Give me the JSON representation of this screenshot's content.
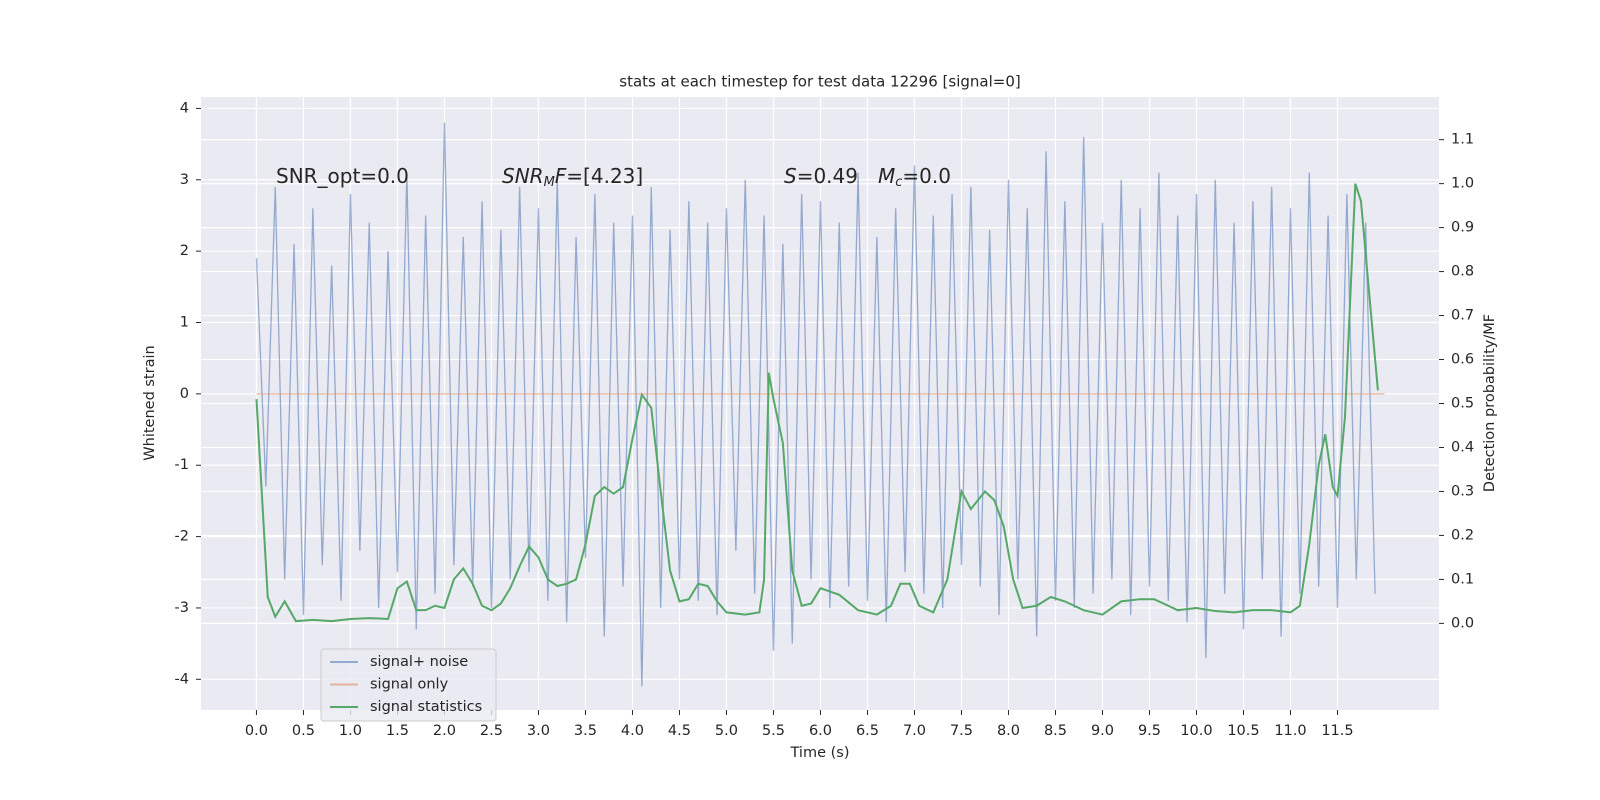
{
  "chart_data": {
    "type": "line",
    "title": "stats at each timestep for test data 12296 [signal=0]",
    "xlabel": "Time (s)",
    "ylabel": "Whitened strain",
    "y2label": "Detection probability/MF",
    "annotations": [
      [
        "SNR_opt=0.0"
      ],
      [
        "SNR",
        "M",
        "F",
        "=[4.23]"
      ],
      [
        "S",
        "=0.49"
      ],
      [
        "M",
        "c",
        "=0.0"
      ]
    ],
    "xlim": [
      -0.59,
      12.58
    ],
    "xticks": [
      {
        "value": 0,
        "label": "0.0"
      },
      0.5,
      {
        "value": 1,
        "label": "1.0"
      },
      1.5,
      {
        "value": 2,
        "label": "2.0"
      },
      2.5,
      {
        "value": 3,
        "label": "3.0"
      },
      3.5,
      {
        "value": 4,
        "label": "4.0"
      },
      4.5,
      {
        "value": 5,
        "label": "5.0"
      },
      5.5,
      {
        "value": 6,
        "label": "6.0"
      },
      6.5,
      {
        "value": 7,
        "label": "7.0"
      },
      7.5,
      {
        "value": 8,
        "label": "8.0"
      },
      8.5,
      {
        "value": 9,
        "label": "9.0"
      },
      9.5,
      {
        "value": 10,
        "label": "10.0"
      },
      10.5,
      {
        "value": 11,
        "label": "11.0"
      },
      11.5
    ],
    "ylim": [
      -4.43,
      4.16
    ],
    "yticks": [
      -4,
      -3,
      -2,
      -1,
      0,
      1,
      2,
      3,
      4
    ],
    "y2lim": [
      -0.197,
      1.197
    ],
    "y2ticks": [
      {
        "value": 0,
        "label": "0.0"
      },
      0.1,
      0.2,
      0.3,
      0.4,
      0.5,
      0.6,
      0.7,
      0.8,
      0.9,
      {
        "value": 1,
        "label": "1.0"
      },
      1.1
    ],
    "grid": true,
    "legend": "lower left",
    "series": [
      {
        "name": "signal+ noise",
        "color": "#4c72b0",
        "x": [
          0,
          0.1,
          0.2,
          0.3,
          0.4,
          0.5,
          0.6,
          0.7,
          0.8,
          0.9,
          1,
          1.1,
          1.2,
          1.3,
          1.4,
          1.5,
          1.6,
          1.7,
          1.8,
          1.9,
          2,
          2.1,
          2.2,
          2.3,
          2.4,
          2.5,
          2.6,
          2.7,
          2.8,
          2.9,
          3,
          3.1,
          3.2,
          3.3,
          3.4,
          3.5,
          3.6,
          3.7,
          3.8,
          3.9,
          4,
          4.1,
          4.2,
          4.3,
          4.4,
          4.5,
          4.6,
          4.7,
          4.8,
          4.9,
          5,
          5.1,
          5.2,
          5.3,
          5.4,
          5.5,
          5.6,
          5.7,
          5.8,
          5.9,
          6,
          6.1,
          6.2,
          6.3,
          6.4,
          6.5,
          6.6,
          6.7,
          6.8,
          6.9,
          7,
          7.1,
          7.2,
          7.3,
          7.4,
          7.5,
          7.6,
          7.7,
          7.8,
          7.9,
          8,
          8.1,
          8.2,
          8.3,
          8.4,
          8.5,
          8.6,
          8.7,
          8.8,
          8.9,
          9,
          9.1,
          9.2,
          9.3,
          9.4,
          9.5,
          9.6,
          9.7,
          9.8,
          9.9,
          10,
          10.1,
          10.2,
          10.3,
          10.4,
          10.5,
          10.6,
          10.7,
          10.8,
          10.9,
          11,
          11.1,
          11.2,
          11.3,
          11.4,
          11.5,
          11.6,
          11.7,
          11.8,
          11.9
        ],
        "values": [
          1.9,
          -1.3,
          2.9,
          -2.6,
          2.1,
          -3.1,
          2.6,
          -2.4,
          1.8,
          -2.9,
          2.8,
          -2.2,
          2.4,
          -3.0,
          2.0,
          -2.5,
          3.1,
          -3.3,
          2.5,
          -2.8,
          3.8,
          -2.4,
          2.2,
          -2.7,
          2.7,
          -3.0,
          2.3,
          -2.6,
          2.9,
          -2.5,
          2.6,
          -2.9,
          3.0,
          -3.2,
          2.2,
          -2.3,
          2.8,
          -3.4,
          2.4,
          -2.7,
          2.5,
          -4.1,
          2.9,
          -3.0,
          2.3,
          -2.6,
          2.7,
          -2.9,
          2.4,
          -3.1,
          2.6,
          -2.2,
          3.0,
          -2.8,
          2.5,
          -3.6,
          2.1,
          -3.5,
          2.8,
          -2.6,
          2.7,
          -3.0,
          2.4,
          -2.7,
          3.1,
          -2.9,
          2.2,
          -3.2,
          2.6,
          -2.5,
          3.2,
          -2.8,
          2.5,
          -3.0,
          2.8,
          -2.4,
          2.9,
          -2.7,
          2.3,
          -3.1,
          3.0,
          -2.6,
          2.6,
          -3.4,
          3.4,
          -2.9,
          2.7,
          -3.0,
          3.6,
          -2.8,
          2.4,
          -2.6,
          3.0,
          -3.1,
          2.6,
          -2.7,
          3.1,
          -2.9,
          2.5,
          -3.2,
          2.8,
          -3.7,
          3.0,
          -2.8,
          2.4,
          -3.3,
          2.7,
          -2.6,
          2.9,
          -3.4,
          2.6,
          -2.8,
          3.1,
          -2.7,
          2.5,
          -3.0,
          2.8,
          -2.6,
          2.4,
          -2.8
        ]
      },
      {
        "name": "signal only",
        "color": "#dd8452",
        "x": [
          0,
          12.0
        ],
        "values": [
          0,
          0
        ]
      },
      {
        "name": "signal statistics",
        "color": "#55a868",
        "axis": "y2",
        "x": [
          0,
          0.12,
          0.2,
          0.3,
          0.42,
          0.6,
          0.8,
          1.0,
          1.2,
          1.4,
          1.5,
          1.6,
          1.7,
          1.8,
          1.9,
          2.0,
          2.1,
          2.2,
          2.3,
          2.4,
          2.5,
          2.6,
          2.7,
          2.8,
          2.9,
          3.0,
          3.1,
          3.2,
          3.3,
          3.4,
          3.5,
          3.6,
          3.7,
          3.8,
          3.9,
          4.0,
          4.1,
          4.2,
          4.3,
          4.4,
          4.5,
          4.6,
          4.7,
          4.8,
          4.9,
          5.0,
          5.2,
          5.35,
          5.4,
          5.45,
          5.5,
          5.6,
          5.7,
          5.8,
          5.9,
          6.0,
          6.2,
          6.4,
          6.6,
          6.75,
          6.85,
          6.95,
          7.05,
          7.2,
          7.35,
          7.5,
          7.6,
          7.75,
          7.85,
          7.95,
          8.05,
          8.15,
          8.3,
          8.45,
          8.6,
          8.8,
          9.0,
          9.2,
          9.4,
          9.55,
          9.7,
          9.8,
          10.0,
          10.2,
          10.4,
          10.6,
          10.8,
          11.0,
          11.1,
          11.2,
          11.3,
          11.37,
          11.45,
          11.5,
          11.58,
          11.69,
          11.75,
          11.85,
          11.93
        ],
        "values": [
          0.51,
          0.06,
          0.015,
          0.05,
          0.005,
          0.008,
          0.005,
          0.01,
          0.012,
          0.01,
          0.08,
          0.095,
          0.03,
          0.03,
          0.04,
          0.035,
          0.1,
          0.125,
          0.09,
          0.04,
          0.03,
          0.045,
          0.08,
          0.13,
          0.175,
          0.15,
          0.1,
          0.085,
          0.09,
          0.1,
          0.18,
          0.29,
          0.31,
          0.295,
          0.31,
          0.42,
          0.52,
          0.49,
          0.3,
          0.12,
          0.05,
          0.055,
          0.09,
          0.085,
          0.05,
          0.025,
          0.02,
          0.025,
          0.1,
          0.57,
          0.51,
          0.41,
          0.12,
          0.04,
          0.045,
          0.08,
          0.065,
          0.03,
          0.02,
          0.04,
          0.09,
          0.09,
          0.04,
          0.025,
          0.1,
          0.3,
          0.26,
          0.3,
          0.28,
          0.22,
          0.1,
          0.035,
          0.04,
          0.06,
          0.05,
          0.03,
          0.02,
          0.05,
          0.055,
          0.055,
          0.04,
          0.03,
          0.035,
          0.028,
          0.025,
          0.03,
          0.03,
          0.025,
          0.04,
          0.18,
          0.36,
          0.43,
          0.31,
          0.29,
          0.47,
          1.0,
          0.96,
          0.72,
          0.53
        ]
      }
    ]
  }
}
